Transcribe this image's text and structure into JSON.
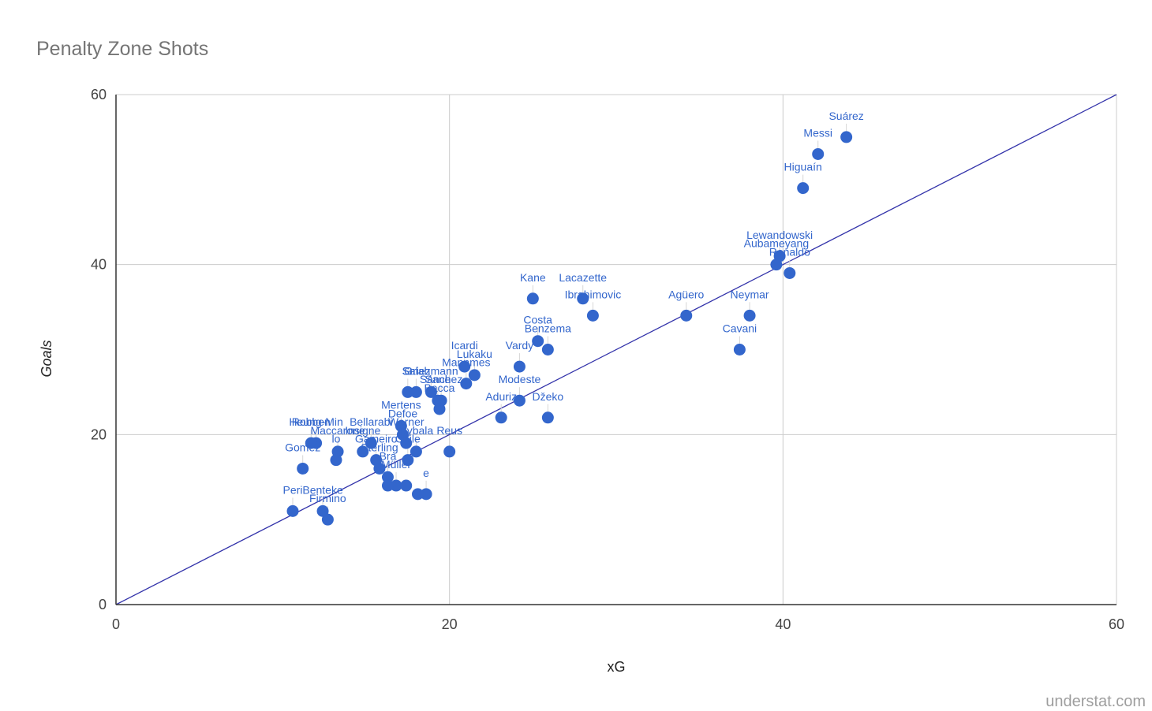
{
  "chart_data": {
    "type": "scatter",
    "title": "Penalty Zone Shots",
    "xlabel": "xG",
    "ylabel": "Goals",
    "xlim": [
      0,
      60
    ],
    "ylim": [
      0,
      60
    ],
    "x_ticks": [
      "0",
      "20",
      "40",
      "60"
    ],
    "y_ticks": [
      "0",
      "20",
      "40",
      "60"
    ],
    "grid": true,
    "reference_line": {
      "from": [
        0,
        0
      ],
      "to": [
        60,
        60
      ],
      "color": "#3333aa"
    },
    "point_color": "#3366cc",
    "label_color": "#3366cc",
    "points": [
      {
        "label": "Suárez",
        "x": 43.8,
        "y": 55
      },
      {
        "label": "Messi",
        "x": 42.1,
        "y": 53
      },
      {
        "label": "Higuaín",
        "x": 41.2,
        "y": 49
      },
      {
        "label": "Lewandowski",
        "x": 39.8,
        "y": 41
      },
      {
        "label": "Aubameyang",
        "x": 39.6,
        "y": 40
      },
      {
        "label": "Ronaldo",
        "x": 40.4,
        "y": 39
      },
      {
        "label": "Neymar",
        "x": 38.0,
        "y": 34
      },
      {
        "label": "Cavani",
        "x": 37.4,
        "y": 30
      },
      {
        "label": "Agüero",
        "x": 34.2,
        "y": 34
      },
      {
        "label": "Lacazette",
        "x": 28.0,
        "y": 36
      },
      {
        "label": "Ibrahimovic",
        "x": 28.6,
        "y": 34
      },
      {
        "label": "Kane",
        "x": 25.0,
        "y": 36
      },
      {
        "label": "Costa",
        "x": 25.3,
        "y": 31
      },
      {
        "label": "Benzema",
        "x": 25.9,
        "y": 30
      },
      {
        "label": "Vardy",
        "x": 24.2,
        "y": 28
      },
      {
        "label": "Icardi",
        "x": 20.9,
        "y": 28
      },
      {
        "label": "Lukaku",
        "x": 21.5,
        "y": 27
      },
      {
        "label": "Mannmes",
        "x": 21.0,
        "y": 26
      },
      {
        "label": "Griezmann",
        "x": 18.9,
        "y": 25
      },
      {
        "label": "Salah",
        "x": 18.0,
        "y": 25
      },
      {
        "label": "Sr",
        "x": 17.5,
        "y": 25
      },
      {
        "label": "Sane",
        "x": 19.3,
        "y": 24
      },
      {
        "label": "Sánchez",
        "x": 19.5,
        "y": 24
      },
      {
        "label": "Bacca",
        "x": 19.4,
        "y": 23
      },
      {
        "label": "Modeste",
        "x": 24.2,
        "y": 24
      },
      {
        "label": "Aduriz",
        "x": 23.1,
        "y": 22
      },
      {
        "label": "Džeko",
        "x": 25.9,
        "y": 22
      },
      {
        "label": "Mertens",
        "x": 17.1,
        "y": 21
      },
      {
        "label": "Defoe",
        "x": 17.2,
        "y": 20
      },
      {
        "label": "Reus",
        "x": 20.0,
        "y": 18
      },
      {
        "label": "Dybala",
        "x": 18.0,
        "y": 18
      },
      {
        "label": "Werner",
        "x": 17.4,
        "y": 19
      },
      {
        "label": "Bellarabi",
        "x": 15.3,
        "y": 19
      },
      {
        "label": "Heung-Min",
        "x": 12.0,
        "y": 19
      },
      {
        "label": "Maccarone",
        "x": 13.3,
        "y": 18
      },
      {
        "label": "Robben",
        "x": 11.7,
        "y": 19
      },
      {
        "label": "Insigne",
        "x": 14.8,
        "y": 18
      },
      {
        "label": "Gameiro",
        "x": 15.6,
        "y": 17
      },
      {
        "label": "Sterling",
        "x": 15.8,
        "y": 16
      },
      {
        "label": "Chile",
        "x": 17.5,
        "y": 17
      },
      {
        "label": "Gomez",
        "x": 11.2,
        "y": 16
      },
      {
        "label": "lo",
        "x": 13.2,
        "y": 17
      },
      {
        "label": "Bra",
        "x": 16.3,
        "y": 15
      },
      {
        "label": "Müller",
        "x": 16.8,
        "y": 14
      },
      {
        "label": "",
        "x": 16.3,
        "y": 14
      },
      {
        "label": "",
        "x": 17.4,
        "y": 14
      },
      {
        "label": "e",
        "x": 18.6,
        "y": 13
      },
      {
        "label": "",
        "x": 18.1,
        "y": 13
      },
      {
        "label": "Peri",
        "x": 10.6,
        "y": 11
      },
      {
        "label": "Benteke",
        "x": 12.4,
        "y": 11
      },
      {
        "label": "Firmino",
        "x": 12.7,
        "y": 10
      }
    ]
  },
  "footer": {
    "credit": "understat.com"
  }
}
